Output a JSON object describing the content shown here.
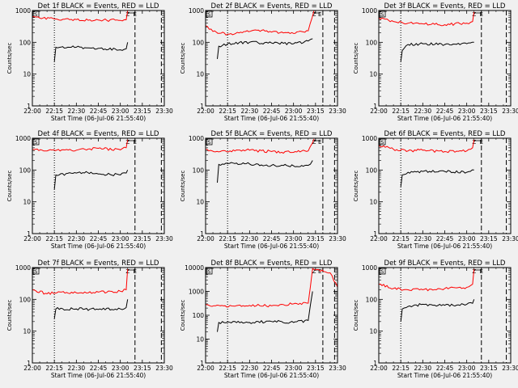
{
  "chart_data": [
    {
      "type": "line",
      "title": "Det 1f BLACK = Events, RED = LLD",
      "xlabel": "Start Time (06-Jul-06 21:55:40)",
      "ylabel": "Counts/sec",
      "y_scale": "log",
      "ylim": [
        1,
        1000
      ],
      "yticks": [
        "1",
        "10",
        "100",
        "1000"
      ],
      "xlim": [
        "22:00",
        "23:30"
      ],
      "xticks": [
        "22:00",
        "22:15",
        "22:30",
        "22:45",
        "23:00",
        "23:15",
        "23:30"
      ],
      "markers": {
        "dotted": "22:15",
        "dashed": [
          "23:10",
          "23:28"
        ],
        "Z": "23:05",
        "E": "23:10"
      },
      "series": [
        {
          "color": "#000000",
          "points": [
            [
              "22:15",
              25
            ],
            [
              "22:16",
              70
            ],
            [
              "22:30",
              70
            ],
            [
              "22:45",
              65
            ],
            [
              "23:00",
              58
            ],
            [
              "23:04",
              62
            ],
            [
              "23:05",
              100
            ]
          ]
        },
        {
          "color": "#ff0000",
          "points": [
            [
              "22:00",
              650
            ],
            [
              "22:05",
              580
            ],
            [
              "22:15",
              540
            ],
            [
              "22:30",
              520
            ],
            [
              "22:45",
              500
            ],
            [
              "23:00",
              490
            ],
            [
              "23:04",
              510
            ],
            [
              "23:05",
              1000
            ]
          ]
        }
      ]
    },
    {
      "type": "line",
      "title": "Det 2f BLACK = Events, RED = LLD",
      "xlabel": "Start Time (06-Jul-06 21:55:40)",
      "ylabel": "Counts/sec",
      "y_scale": "log",
      "ylim": [
        1,
        1000
      ],
      "yticks": [
        "1",
        "10",
        "100",
        "1000"
      ],
      "xlim": [
        "22:00",
        "23:30"
      ],
      "xticks": [
        "22:00",
        "22:15",
        "22:30",
        "22:45",
        "23:00",
        "23:15",
        "23:30"
      ],
      "markers": {
        "dotted": "22:15",
        "dashed": [
          "23:20",
          "23:28"
        ],
        "Z": "23:14",
        "E": "23:18"
      },
      "series": [
        {
          "color": "#000000",
          "points": [
            [
              "22:08",
              30
            ],
            [
              "22:09",
              75
            ],
            [
              "22:15",
              90
            ],
            [
              "22:30",
              100
            ],
            [
              "22:45",
              95
            ],
            [
              "23:00",
              90
            ],
            [
              "23:10",
              110
            ],
            [
              "23:13",
              130
            ]
          ]
        },
        {
          "color": "#ff0000",
          "points": [
            [
              "22:00",
              330
            ],
            [
              "22:05",
              220
            ],
            [
              "22:15",
              180
            ],
            [
              "22:25",
              200
            ],
            [
              "22:35",
              240
            ],
            [
              "22:45",
              210
            ],
            [
              "23:00",
              190
            ],
            [
              "23:10",
              230
            ],
            [
              "23:14",
              1000
            ]
          ]
        }
      ]
    },
    {
      "type": "line",
      "title": "Det 3f BLACK = Events, RED = LLD",
      "xlabel": "Start Time (06-Jul-06 21:55:40)",
      "ylabel": "Counts/sec",
      "y_scale": "log",
      "ylim": [
        1,
        1000
      ],
      "yticks": [
        "1",
        "10",
        "100",
        "1000"
      ],
      "xlim": [
        "22:00",
        "23:30"
      ],
      "xticks": [
        "22:00",
        "22:15",
        "22:30",
        "22:45",
        "23:00",
        "23:15",
        "23:30"
      ],
      "markers": {
        "dotted": "22:15",
        "dashed": [
          "23:10",
          "23:27"
        ],
        "Z": "23:05",
        "E": "23:10"
      },
      "series": [
        {
          "color": "#000000",
          "points": [
            [
              "22:15",
              25
            ],
            [
              "22:16",
              55
            ],
            [
              "22:20",
              85
            ],
            [
              "22:30",
              90
            ],
            [
              "22:45",
              85
            ],
            [
              "23:00",
              90
            ],
            [
              "23:05",
              100
            ]
          ]
        },
        {
          "color": "#ff0000",
          "points": [
            [
              "22:00",
              600
            ],
            [
              "22:10",
              450
            ],
            [
              "22:20",
              400
            ],
            [
              "22:30",
              380
            ],
            [
              "22:45",
              360
            ],
            [
              "23:00",
              400
            ],
            [
              "23:04",
              450
            ],
            [
              "23:05",
              900
            ]
          ]
        }
      ]
    },
    {
      "type": "line",
      "title": "Det 4f BLACK = Events, RED = LLD",
      "xlabel": "Start Time (06-Jul-06 21:55:40)",
      "ylabel": "Counts/sec",
      "y_scale": "log",
      "ylim": [
        1,
        1000
      ],
      "yticks": [
        "1",
        "10",
        "100",
        "1000"
      ],
      "xlim": [
        "22:00",
        "23:30"
      ],
      "xticks": [
        "22:00",
        "22:15",
        "22:30",
        "22:45",
        "23:00",
        "23:15",
        "23:30"
      ],
      "markers": {
        "dotted": "22:15",
        "dashed": [
          "23:10",
          "23:28"
        ],
        "Z": "23:05",
        "E": "23:10"
      },
      "series": [
        {
          "color": "#000000",
          "points": [
            [
              "22:15",
              25
            ],
            [
              "22:16",
              70
            ],
            [
              "22:30",
              80
            ],
            [
              "22:40",
              85
            ],
            [
              "22:45",
              75
            ],
            [
              "23:00",
              70
            ],
            [
              "23:04",
              80
            ],
            [
              "23:05",
              100
            ]
          ]
        },
        {
          "color": "#ff0000",
          "points": [
            [
              "22:00",
              450
            ],
            [
              "22:10",
              400
            ],
            [
              "22:20",
              430
            ],
            [
              "22:30",
              420
            ],
            [
              "22:45",
              480
            ],
            [
              "23:00",
              430
            ],
            [
              "23:04",
              500
            ],
            [
              "23:05",
              900
            ]
          ]
        }
      ]
    },
    {
      "type": "line",
      "title": "Det 5f BLACK = Events, RED = LLD",
      "xlabel": "Start Time (06-Jul-06 21:55:40)",
      "ylabel": "Counts/sec",
      "y_scale": "log",
      "ylim": [
        1,
        1000
      ],
      "yticks": [
        "1",
        "10",
        "100",
        "1000"
      ],
      "xlim": [
        "22:00",
        "23:30"
      ],
      "xticks": [
        "22:00",
        "22:15",
        "22:30",
        "22:45",
        "23:00",
        "23:15",
        "23:30"
      ],
      "markers": {
        "dotted": "22:15",
        "dashed": [
          "23:20",
          "23:28"
        ],
        "Z": "23:14",
        "E": "23:18"
      },
      "series": [
        {
          "color": "#000000",
          "points": [
            [
              "22:08",
              40
            ],
            [
              "22:09",
              150
            ],
            [
              "22:20",
              160
            ],
            [
              "22:30",
              155
            ],
            [
              "22:45",
              140
            ],
            [
              "23:00",
              135
            ],
            [
              "23:10",
              140
            ],
            [
              "23:13",
              200
            ]
          ]
        },
        {
          "color": "#ff0000",
          "points": [
            [
              "22:00",
              450
            ],
            [
              "22:10",
              380
            ],
            [
              "22:20",
              400
            ],
            [
              "22:30",
              420
            ],
            [
              "22:45",
              380
            ],
            [
              "23:00",
              360
            ],
            [
              "23:10",
              400
            ],
            [
              "23:14",
              950
            ]
          ]
        }
      ]
    },
    {
      "type": "line",
      "title": "Det 6f BLACK = Events, RED = LLD",
      "xlabel": "Start Time (06-Jul-06 21:55:40)",
      "ylabel": "Counts/sec",
      "y_scale": "log",
      "ylim": [
        1,
        1000
      ],
      "yticks": [
        "1",
        "10",
        "100",
        "1000"
      ],
      "xlim": [
        "22:00",
        "23:30"
      ],
      "xticks": [
        "22:00",
        "22:15",
        "22:30",
        "22:45",
        "23:00",
        "23:15",
        "23:30"
      ],
      "markers": {
        "dotted": "22:15",
        "dashed": [
          "23:10",
          "23:27"
        ],
        "Z": "23:05",
        "E": "23:10"
      },
      "series": [
        {
          "color": "#000000",
          "points": [
            [
              "22:15",
              30
            ],
            [
              "22:16",
              70
            ],
            [
              "22:20",
              85
            ],
            [
              "22:30",
              90
            ],
            [
              "22:45",
              90
            ],
            [
              "23:00",
              85
            ],
            [
              "23:05",
              100
            ]
          ]
        },
        {
          "color": "#ff0000",
          "points": [
            [
              "22:00",
              600
            ],
            [
              "22:10",
              450
            ],
            [
              "22:20",
              400
            ],
            [
              "22:30",
              420
            ],
            [
              "22:45",
              380
            ],
            [
              "23:00",
              400
            ],
            [
              "23:04",
              500
            ],
            [
              "23:05",
              900
            ]
          ]
        }
      ]
    },
    {
      "type": "line",
      "title": "Det 7f BLACK = Events, RED = LLD",
      "xlabel": "Start Time (06-Jul-06 21:55:40)",
      "ylabel": "Counts/sec",
      "y_scale": "log",
      "ylim": [
        1,
        1000
      ],
      "yticks": [
        "1",
        "10",
        "100",
        "1000"
      ],
      "xlim": [
        "22:00",
        "23:30"
      ],
      "xticks": [
        "22:00",
        "22:15",
        "22:30",
        "22:45",
        "23:00",
        "23:15",
        "23:30"
      ],
      "markers": {
        "dotted": "22:15",
        "dashed": [
          "23:10",
          "23:28"
        ],
        "Z": "23:05",
        "E": "23:10"
      },
      "series": [
        {
          "color": "#000000",
          "points": [
            [
              "22:15",
              25
            ],
            [
              "22:16",
              50
            ],
            [
              "22:30",
              50
            ],
            [
              "22:45",
              48
            ],
            [
              "23:00",
              50
            ],
            [
              "23:04",
              55
            ],
            [
              "23:05",
              100
            ]
          ]
        },
        {
          "color": "#ff0000",
          "points": [
            [
              "22:00",
              200
            ],
            [
              "22:10",
              150
            ],
            [
              "22:20",
              170
            ],
            [
              "22:30",
              160
            ],
            [
              "22:45",
              170
            ],
            [
              "23:00",
              180
            ],
            [
              "23:04",
              200
            ],
            [
              "23:05",
              900
            ]
          ]
        }
      ]
    },
    {
      "type": "line",
      "title": "Det 8f BLACK = Events, RED = LLD",
      "xlabel": "Start Time (06-Jul-06 21:55:40)",
      "ylabel": "Counts/sec",
      "y_scale": "log",
      "ylim": [
        1,
        10000
      ],
      "yticks": [
        "1",
        "10",
        "100",
        "1000",
        "10000"
      ],
      "xlim": [
        "22:00",
        "23:30"
      ],
      "xticks": [
        "22:00",
        "22:15",
        "22:30",
        "22:45",
        "23:00",
        "23:15",
        "23:30"
      ],
      "markers": {
        "dotted": "22:15",
        "dashed": [
          "23:20",
          "23:28"
        ],
        "Z": "23:14",
        "E": "23:18"
      },
      "series": [
        {
          "color": "#000000",
          "points": [
            [
              "22:08",
              20
            ],
            [
              "22:09",
              50
            ],
            [
              "22:20",
              55
            ],
            [
              "22:30",
              50
            ],
            [
              "22:45",
              55
            ],
            [
              "23:00",
              50
            ],
            [
              "23:10",
              60
            ],
            [
              "23:13",
              1000
            ]
          ]
        },
        {
          "color": "#ff0000",
          "points": [
            [
              "22:00",
              280
            ],
            [
              "22:10",
              250
            ],
            [
              "22:20",
              240
            ],
            [
              "22:30",
              260
            ],
            [
              "22:45",
              250
            ],
            [
              "23:00",
              300
            ],
            [
              "23:10",
              320
            ],
            [
              "23:13",
              9000
            ],
            [
              "23:15",
              8000
            ],
            [
              "23:25",
              6000
            ],
            [
              "23:30",
              1500
            ]
          ]
        }
      ]
    },
    {
      "type": "line",
      "title": "Det 9f BLACK = Events, RED = LLD",
      "xlabel": "Start Time (06-Jul-06 21:55:40)",
      "ylabel": "Counts/sec",
      "y_scale": "log",
      "ylim": [
        1,
        1000
      ],
      "yticks": [
        "1",
        "10",
        "100",
        "1000"
      ],
      "xlim": [
        "22:00",
        "23:30"
      ],
      "xticks": [
        "22:00",
        "22:15",
        "22:30",
        "22:45",
        "23:00",
        "23:15",
        "23:30"
      ],
      "markers": {
        "dotted": "22:15",
        "dashed": [
          "23:10",
          "23:27"
        ],
        "Z": "23:05",
        "E": "23:10"
      },
      "series": [
        {
          "color": "#000000",
          "points": [
            [
              "22:15",
              20
            ],
            [
              "22:16",
              50
            ],
            [
              "22:20",
              60
            ],
            [
              "22:30",
              70
            ],
            [
              "22:45",
              65
            ],
            [
              "23:00",
              70
            ],
            [
              "23:04",
              75
            ],
            [
              "23:05",
              100
            ]
          ]
        },
        {
          "color": "#ff0000",
          "points": [
            [
              "22:00",
              300
            ],
            [
              "22:10",
              220
            ],
            [
              "22:20",
              200
            ],
            [
              "22:30",
              200
            ],
            [
              "22:45",
              220
            ],
            [
              "23:00",
              240
            ],
            [
              "23:04",
              300
            ],
            [
              "23:05",
              900
            ]
          ]
        }
      ]
    }
  ]
}
